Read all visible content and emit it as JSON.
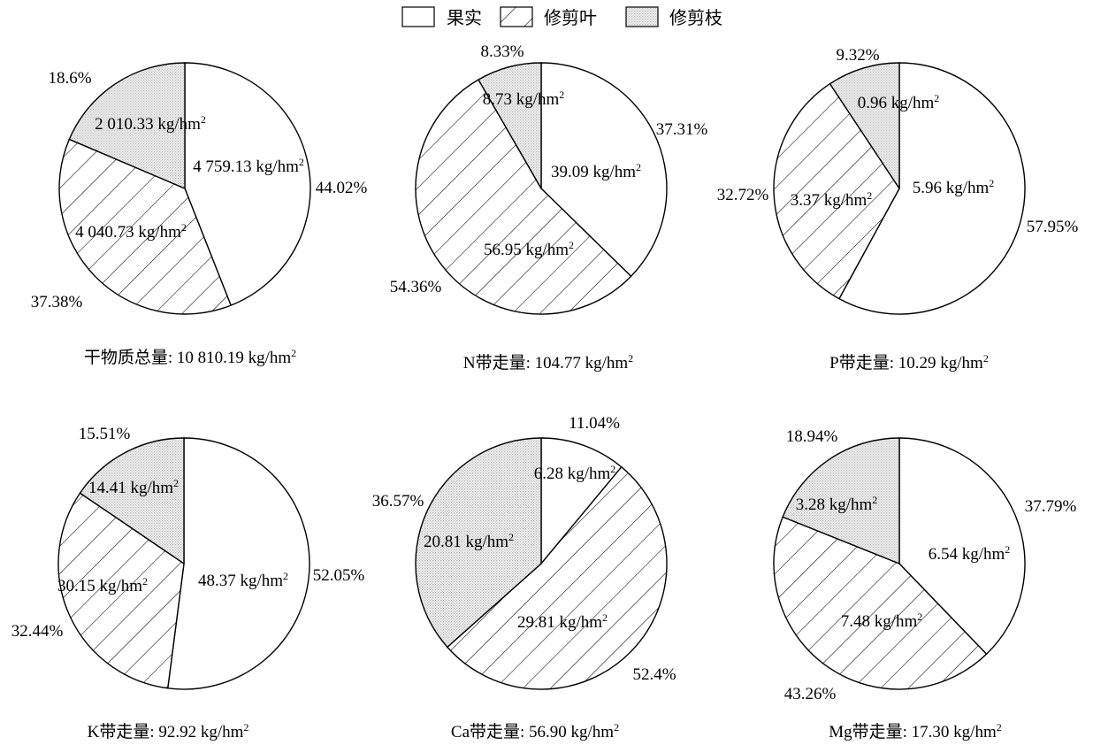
{
  "legend": {
    "items": [
      {
        "label": "果实",
        "pattern": "plain"
      },
      {
        "label": "修剪叶",
        "pattern": "hatch"
      },
      {
        "label": "修剪枝",
        "pattern": "dots"
      }
    ]
  },
  "colors": {
    "line": "#000000",
    "background": "#ffffff",
    "dots": "#b8b8b8"
  },
  "chart_data": [
    {
      "type": "pie",
      "caption": "干物质总量: 10 810.19 kg/hm",
      "caption_sup": "2",
      "slices": [
        {
          "category": "果实",
          "percent": "44.02%",
          "amount": "4 759.13 kg/hm",
          "value": 44.02
        },
        {
          "category": "修剪叶",
          "percent": "37.38%",
          "amount": "4 040.73 kg/hm",
          "value": 37.38
        },
        {
          "category": "修剪枝",
          "percent": "18.6%",
          "amount": "2 010.33 kg/hm",
          "value": 18.6
        }
      ]
    },
    {
      "type": "pie",
      "caption": "N带走量: 104.77 kg/hm",
      "caption_sup": "2",
      "slices": [
        {
          "category": "果实",
          "percent": "37.31%",
          "amount": "39.09 kg/hm",
          "value": 37.31
        },
        {
          "category": "修剪叶",
          "percent": "54.36%",
          "amount": "56.95 kg/hm",
          "value": 54.36
        },
        {
          "category": "修剪枝",
          "percent": "8.33%",
          "amount": "8.73 kg/hm",
          "value": 8.33
        }
      ]
    },
    {
      "type": "pie",
      "caption": "P带走量: 10.29 kg/hm",
      "caption_sup": "2",
      "slices": [
        {
          "category": "果实",
          "percent": "57.95%",
          "amount": "5.96 kg/hm",
          "value": 57.95
        },
        {
          "category": "修剪叶",
          "percent": "32.72%",
          "amount": "3.37 kg/hm",
          "value": 32.72
        },
        {
          "category": "修剪枝",
          "percent": "9.32%",
          "amount": "0.96 kg/hm",
          "value": 9.32
        }
      ]
    },
    {
      "type": "pie",
      "caption": "K带走量: 92.92 kg/hm",
      "caption_sup": "2",
      "slices": [
        {
          "category": "果实",
          "percent": "52.05%",
          "amount": "48.37 kg/hm",
          "value": 52.05
        },
        {
          "category": "修剪叶",
          "percent": "32.44%",
          "amount": "30.15 kg/hm",
          "value": 32.44
        },
        {
          "category": "修剪枝",
          "percent": "15.51%",
          "amount": "14.41 kg/hm",
          "value": 15.51
        }
      ]
    },
    {
      "type": "pie",
      "caption": "Ca带走量: 56.90 kg/hm",
      "caption_sup": "2",
      "slices": [
        {
          "category": "果实",
          "percent": "11.04%",
          "amount": "6.28 kg/hm",
          "value": 11.04
        },
        {
          "category": "修剪叶",
          "percent": "52.4%",
          "amount": "29.81 kg/hm",
          "value": 52.4
        },
        {
          "category": "修剪枝",
          "percent": "36.57%",
          "amount": "20.81 kg/hm",
          "value": 36.57
        }
      ]
    },
    {
      "type": "pie",
      "caption": "Mg带走量: 17.30 kg/hm",
      "caption_sup": "2",
      "slices": [
        {
          "category": "果实",
          "percent": "37.79%",
          "amount": "6.54 kg/hm",
          "value": 37.79
        },
        {
          "category": "修剪叶",
          "percent": "43.26%",
          "amount": "7.48 kg/hm",
          "value": 43.26
        },
        {
          "category": "修剪枝",
          "percent": "18.94%",
          "amount": "3.28 kg/hm",
          "value": 18.94
        }
      ]
    }
  ]
}
